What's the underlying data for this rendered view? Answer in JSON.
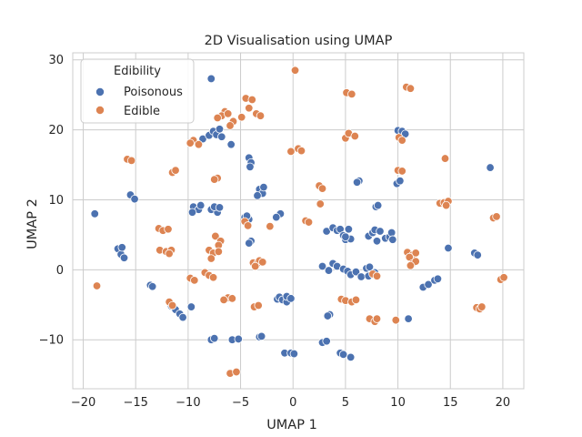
{
  "chart_data": {
    "type": "scatter",
    "title": "2D Visualisation using UMAP",
    "xlabel": "UMAP 1",
    "ylabel": "UMAP 2",
    "xlim": [
      -21,
      22
    ],
    "ylim": [
      -17,
      31
    ],
    "xticks": [
      -20,
      -15,
      -10,
      -5,
      0,
      5,
      10,
      15,
      20
    ],
    "yticks": [
      -10,
      0,
      10,
      20,
      30
    ],
    "tick_labels_x": [
      "−20",
      "−15",
      "−10",
      "−5",
      "0",
      "5",
      "10",
      "15",
      "20"
    ],
    "tick_labels_y": [
      "−10",
      "0",
      "10",
      "20",
      "30"
    ],
    "grid": true,
    "legend": {
      "title": "Edibility",
      "position": "top-left"
    },
    "series": [
      {
        "name": "Poisonous",
        "color": "#4c72b0",
        "points": [
          [
            -7.8,
            27.3
          ],
          [
            -8.6,
            18.7
          ],
          [
            -8.0,
            19.2
          ],
          [
            -7.6,
            19.8
          ],
          [
            -7.3,
            19.3
          ],
          [
            -7.0,
            20.1
          ],
          [
            -6.8,
            19.0
          ],
          [
            -5.9,
            17.9
          ],
          [
            -4.2,
            16.0
          ],
          [
            -4.0,
            15.3
          ],
          [
            -4.1,
            14.7
          ],
          [
            -3.2,
            11.5
          ],
          [
            -2.9,
            10.9
          ],
          [
            -3.4,
            10.6
          ],
          [
            -2.8,
            11.8
          ],
          [
            -9.5,
            9.0
          ],
          [
            -9.0,
            8.6
          ],
          [
            -9.6,
            8.2
          ],
          [
            -8.8,
            9.2
          ],
          [
            -7.8,
            8.6
          ],
          [
            -7.2,
            8.2
          ],
          [
            -7.5,
            9.0
          ],
          [
            -7.0,
            8.9
          ],
          [
            -4.6,
            7.5
          ],
          [
            -4.2,
            7.2
          ],
          [
            -4.4,
            7.7
          ],
          [
            -1.2,
            8.0
          ],
          [
            -1.6,
            7.5
          ],
          [
            -4.0,
            4.1
          ],
          [
            -4.2,
            3.8
          ],
          [
            -18.9,
            8.0
          ],
          [
            -15.5,
            10.7
          ],
          [
            -15.1,
            10.1
          ],
          [
            -16.7,
            3.0
          ],
          [
            -16.4,
            2.2
          ],
          [
            -16.3,
            3.2
          ],
          [
            -16.1,
            1.7
          ],
          [
            -13.6,
            -2.2
          ],
          [
            -13.4,
            -2.4
          ],
          [
            -11.6,
            -5.2
          ],
          [
            -11.2,
            -5.7
          ],
          [
            -10.8,
            -6.3
          ],
          [
            -10.5,
            -6.8
          ],
          [
            -9.7,
            -5.3
          ],
          [
            -7.8,
            -10.0
          ],
          [
            -7.5,
            -9.8
          ],
          [
            -5.8,
            -10.0
          ],
          [
            -5.2,
            -9.9
          ],
          [
            -3.2,
            -9.6
          ],
          [
            -3.0,
            -9.5
          ],
          [
            -1.5,
            -4.2
          ],
          [
            -1.3,
            -3.9
          ],
          [
            -1.0,
            -4.3
          ],
          [
            -0.6,
            -4.6
          ],
          [
            -0.6,
            -3.8
          ],
          [
            -0.2,
            -4.1
          ],
          [
            -0.8,
            -11.9
          ],
          [
            -0.2,
            -11.9
          ],
          [
            0.1,
            -12.0
          ],
          [
            2.8,
            -10.4
          ],
          [
            3.2,
            -10.2
          ],
          [
            4.5,
            -11.9
          ],
          [
            4.8,
            -12.1
          ],
          [
            5.5,
            -12.5
          ],
          [
            3.5,
            -6.4
          ],
          [
            3.3,
            -6.6
          ],
          [
            3.2,
            5.5
          ],
          [
            3.8,
            6.0
          ],
          [
            4.2,
            5.6
          ],
          [
            4.5,
            5.8
          ],
          [
            4.8,
            4.9
          ],
          [
            5.0,
            4.3
          ],
          [
            5.5,
            4.4
          ],
          [
            5.3,
            5.8
          ],
          [
            5.0,
            4.7
          ],
          [
            2.8,
            0.5
          ],
          [
            3.4,
            -0.1
          ],
          [
            3.8,
            0.9
          ],
          [
            4.2,
            0.5
          ],
          [
            4.8,
            0.1
          ],
          [
            5.2,
            -0.2
          ],
          [
            5.5,
            -0.7
          ],
          [
            6.0,
            -0.3
          ],
          [
            6.5,
            -1.0
          ],
          [
            7.0,
            0.2
          ],
          [
            7.3,
            0.4
          ],
          [
            7.8,
            -0.4
          ],
          [
            7.2,
            -0.9
          ],
          [
            6.3,
            12.7
          ],
          [
            6.1,
            12.5
          ],
          [
            7.9,
            9.0
          ],
          [
            8.1,
            9.2
          ],
          [
            7.2,
            4.8
          ],
          [
            7.6,
            5.3
          ],
          [
            7.8,
            5.7
          ],
          [
            8.0,
            4.1
          ],
          [
            8.3,
            5.5
          ],
          [
            8.8,
            4.5
          ],
          [
            9.2,
            4.7
          ],
          [
            9.4,
            5.3
          ],
          [
            9.5,
            4.3
          ],
          [
            10.0,
            19.9
          ],
          [
            10.4,
            19.8
          ],
          [
            10.7,
            19.4
          ],
          [
            9.9,
            12.3
          ],
          [
            10.2,
            12.7
          ],
          [
            11.0,
            -7.0
          ],
          [
            12.4,
            -2.5
          ],
          [
            12.9,
            -2.1
          ],
          [
            13.5,
            -1.5
          ],
          [
            13.8,
            -1.3
          ],
          [
            14.8,
            3.1
          ],
          [
            17.3,
            2.4
          ],
          [
            17.6,
            2.1
          ],
          [
            18.8,
            14.6
          ]
        ]
      },
      {
        "name": "Edible",
        "color": "#dd8452",
        "points": [
          [
            0.2,
            28.5
          ],
          [
            -4.5,
            24.5
          ],
          [
            -3.9,
            24.3
          ],
          [
            -4.2,
            23.1
          ],
          [
            -6.5,
            22.6
          ],
          [
            -6.8,
            22.0
          ],
          [
            -6.2,
            22.3
          ],
          [
            -7.2,
            21.7
          ],
          [
            -5.7,
            21.2
          ],
          [
            -6.0,
            20.6
          ],
          [
            -4.9,
            21.8
          ],
          [
            -3.5,
            22.3
          ],
          [
            -3.1,
            22.0
          ],
          [
            -9.5,
            18.5
          ],
          [
            -9.8,
            18.1
          ],
          [
            -9.0,
            17.9
          ],
          [
            -15.8,
            15.8
          ],
          [
            -15.4,
            15.6
          ],
          [
            -11.5,
            13.9
          ],
          [
            -11.2,
            14.2
          ],
          [
            -7.2,
            13.1
          ],
          [
            -7.5,
            12.9
          ],
          [
            -0.2,
            16.9
          ],
          [
            0.5,
            17.3
          ],
          [
            0.8,
            17.0
          ],
          [
            2.5,
            12.0
          ],
          [
            2.8,
            11.6
          ],
          [
            2.6,
            9.4
          ],
          [
            -2.2,
            6.2
          ],
          [
            1.2,
            7.0
          ],
          [
            1.5,
            6.8
          ],
          [
            5.0,
            18.8
          ],
          [
            5.3,
            19.5
          ],
          [
            5.9,
            19.1
          ],
          [
            5.1,
            25.3
          ],
          [
            5.6,
            25.1
          ],
          [
            10.8,
            26.1
          ],
          [
            11.2,
            25.9
          ],
          [
            10.1,
            18.9
          ],
          [
            10.4,
            18.5
          ],
          [
            10.0,
            14.2
          ],
          [
            10.4,
            14.1
          ],
          [
            14.5,
            15.9
          ],
          [
            -7.4,
            4.8
          ],
          [
            -6.9,
            4.1
          ],
          [
            -7.1,
            3.5
          ],
          [
            -4.6,
            6.9
          ],
          [
            -4.3,
            6.3
          ],
          [
            -12.8,
            5.9
          ],
          [
            -12.4,
            5.6
          ],
          [
            -11.9,
            5.8
          ],
          [
            -12.7,
            2.8
          ],
          [
            -12.1,
            2.6
          ],
          [
            -11.6,
            2.8
          ],
          [
            -11.8,
            2.3
          ],
          [
            -8.0,
            2.8
          ],
          [
            -7.6,
            2.4
          ],
          [
            -7.1,
            2.6
          ],
          [
            -7.8,
            1.6
          ],
          [
            -3.8,
            1.0
          ],
          [
            -3.4,
            0.9
          ],
          [
            -3.2,
            1.3
          ],
          [
            -2.9,
            1.1
          ],
          [
            -3.6,
            0.5
          ],
          [
            -9.8,
            -1.2
          ],
          [
            -9.4,
            -1.5
          ],
          [
            -8.4,
            -0.4
          ],
          [
            -8.0,
            -0.8
          ],
          [
            -7.6,
            -1.1
          ],
          [
            -11.8,
            -4.6
          ],
          [
            -11.5,
            -5.1
          ],
          [
            -6.2,
            -4.0
          ],
          [
            -5.8,
            -4.1
          ],
          [
            -6.6,
            -4.3
          ],
          [
            -3.7,
            -5.3
          ],
          [
            -3.3,
            -5.1
          ],
          [
            -6.0,
            -14.8
          ],
          [
            -5.4,
            -14.6
          ],
          [
            -18.7,
            -2.3
          ],
          [
            4.6,
            -4.2
          ],
          [
            5.0,
            -4.4
          ],
          [
            5.6,
            -4.6
          ],
          [
            6.0,
            -4.3
          ],
          [
            7.3,
            -7.0
          ],
          [
            7.8,
            -7.4
          ],
          [
            8.0,
            -7.0
          ],
          [
            9.8,
            -7.2
          ],
          [
            7.6,
            -0.6
          ],
          [
            8.0,
            -0.9
          ],
          [
            10.9,
            2.5
          ],
          [
            11.4,
            2.1
          ],
          [
            11.7,
            2.4
          ],
          [
            11.1,
            1.8
          ],
          [
            11.4,
            0.9
          ],
          [
            11.7,
            1.2
          ],
          [
            11.2,
            0.6
          ],
          [
            14.0,
            9.5
          ],
          [
            14.4,
            9.6
          ],
          [
            14.8,
            9.8
          ],
          [
            14.6,
            9.2
          ],
          [
            17.5,
            -5.4
          ],
          [
            17.8,
            -5.6
          ],
          [
            18.0,
            -5.3
          ],
          [
            19.1,
            7.4
          ],
          [
            19.4,
            7.6
          ],
          [
            19.8,
            -1.4
          ],
          [
            20.1,
            -1.1
          ]
        ]
      }
    ]
  }
}
